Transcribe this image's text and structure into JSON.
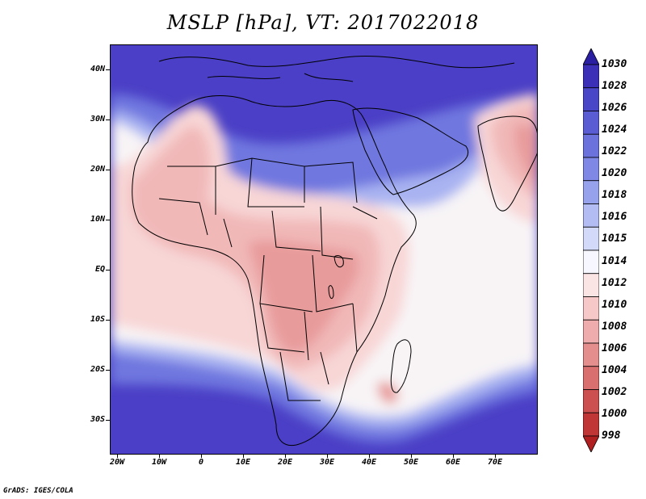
{
  "title": "MSLP [hPa], VT: 2017022018",
  "credit": "GrADS: IGES/COLA",
  "lat_labels": [
    "40N",
    "30N",
    "20N",
    "10N",
    "EQ",
    "10S",
    "20S",
    "30S"
  ],
  "lon_labels": [
    "20W",
    "10W",
    "0",
    "10E",
    "20E",
    "30E",
    "40E",
    "50E",
    "60E",
    "70E"
  ],
  "colorbar": {
    "levels": [
      "1030",
      "1028",
      "1026",
      "1024",
      "1022",
      "1020",
      "1018",
      "1016",
      "1015",
      "1014",
      "1012",
      "1010",
      "1008",
      "1006",
      "1004",
      "1002",
      "1000",
      "998"
    ],
    "colors": [
      "#2a1fa3",
      "#3b2fb8",
      "#4a46c8",
      "#5a5cd3",
      "#6b72dc",
      "#7f88e4",
      "#97a2ec",
      "#b3bdf3",
      "#d3daf9",
      "#f7f7ff",
      "#fbe4e4",
      "#f6c8c8",
      "#eeacac",
      "#e48e8e",
      "#d96f6f",
      "#cd5050",
      "#c03535",
      "#b02020"
    ]
  },
  "field_colors": {
    "high_far": "#4a3fc6",
    "high_mid": "#6f77df",
    "high_near": "#a9b3f1",
    "neutral": "#f8f4f6",
    "low_weak": "#f8d6d6",
    "low_mid": "#f1b8b8",
    "low_strong": "#e89b9b",
    "border": "#000000"
  }
}
